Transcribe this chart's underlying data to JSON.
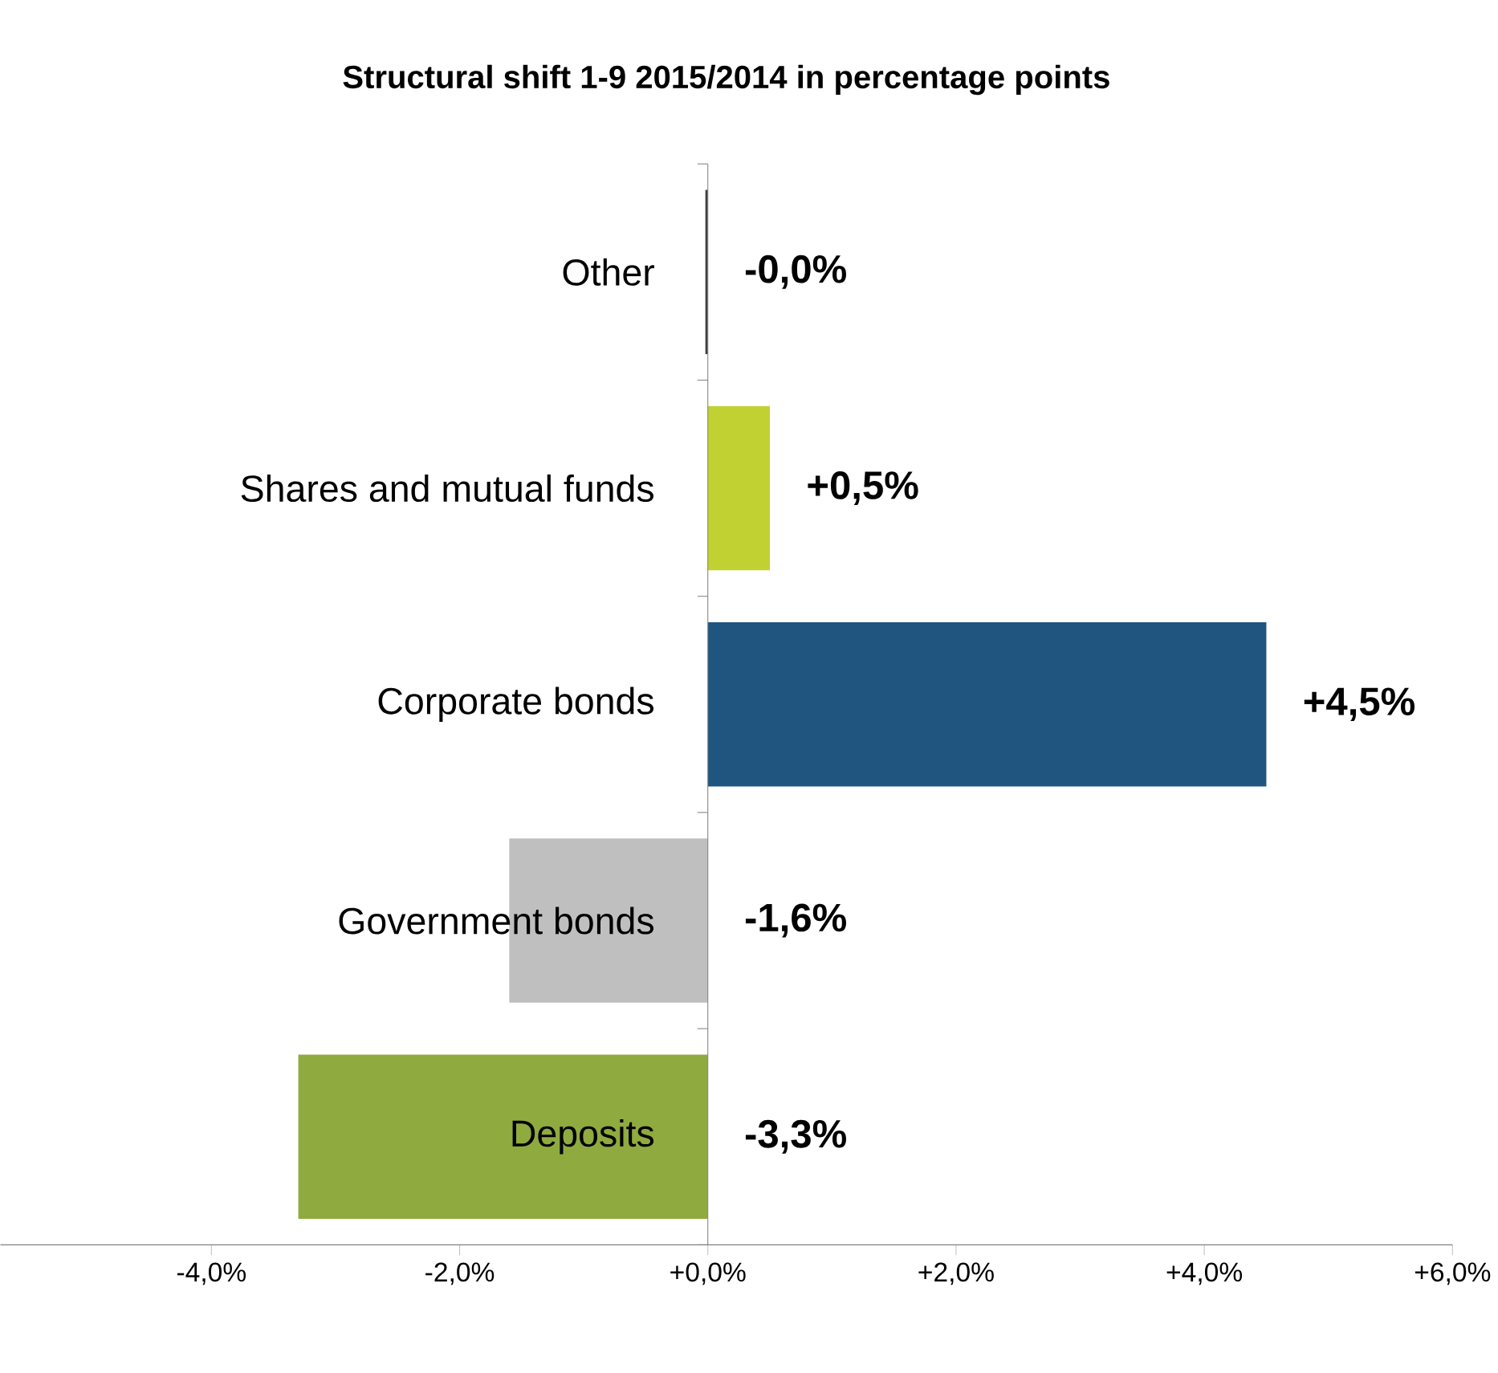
{
  "chart_data": {
    "type": "bar",
    "orientation": "horizontal",
    "title": "Structural shift 1-9 2015/2014 in percentage points",
    "categories": [
      "Other",
      "Shares and mutual funds",
      "Corporate bonds",
      "Government bonds",
      "Deposits"
    ],
    "values": [
      -0.02,
      0.5,
      4.5,
      -1.6,
      -3.3
    ],
    "colors": [
      "#404040",
      "#c2d132",
      "#1f557f",
      "#bfbfbf",
      "#8faa3e"
    ],
    "value_labels": [
      "-0,0%",
      "+0,5%",
      "+4,5%",
      "-1,6%",
      "-3,3%"
    ],
    "xlim": [
      -5.7,
      6
    ],
    "xticks": [
      {
        "value": -4,
        "label": "-4,0%"
      },
      {
        "value": -2,
        "label": "-2,0%"
      },
      {
        "value": 0,
        "label": "+0,0%"
      },
      {
        "value": 2,
        "label": "+2,0%"
      },
      {
        "value": 4,
        "label": "+4,0%"
      },
      {
        "value": 6,
        "label": "+6,0%"
      }
    ],
    "grid": false
  }
}
